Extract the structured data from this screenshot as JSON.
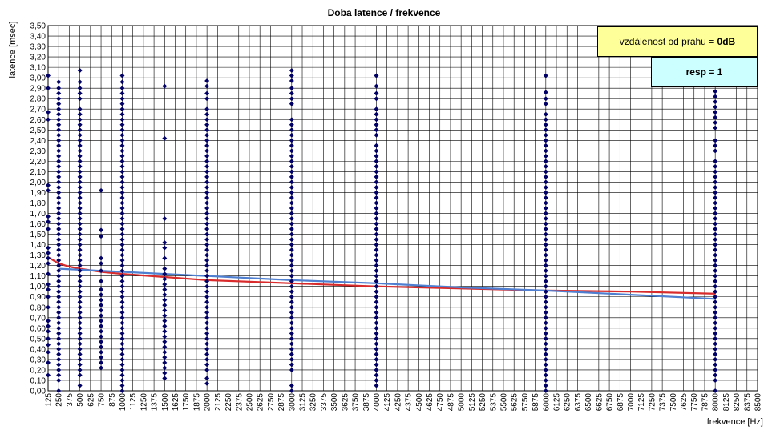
{
  "chart_data": {
    "type": "scatter",
    "title": "Doba latence / frekvence",
    "xlabel": "frekvence  [Hz]",
    "ylabel": "latence  [msec]",
    "xlim": [
      125,
      8500
    ],
    "ylim": [
      0,
      3.5
    ],
    "x_tick_step": 125,
    "y_tick_step": 0.1,
    "y_decimal_separator": ",",
    "grid": true,
    "marker_color": "#000066",
    "series": [
      {
        "type": "scatter",
        "points": [
          {
            "x": 125,
            "y": [
              0.15,
              0.27,
              0.37,
              0.44,
              0.5,
              0.57,
              0.62,
              0.67,
              0.8,
              0.9,
              0.97,
              1.02,
              1.12,
              1.22,
              1.27,
              1.32,
              1.37,
              1.55,
              1.62,
              1.67,
              1.92,
              1.97,
              2.6,
              2.67,
              2.9,
              3.02
            ]
          },
          {
            "x": 250,
            "y": [
              0.0,
              0.1,
              0.15,
              0.2,
              0.25,
              0.3,
              0.35,
              0.4,
              0.45,
              0.5,
              0.55,
              0.6,
              0.65,
              0.7,
              0.75,
              0.8,
              0.85,
              0.9,
              0.95,
              1.0,
              1.05,
              1.1,
              1.15,
              1.2,
              1.25,
              1.3,
              1.35,
              1.4,
              1.45,
              1.5,
              1.55,
              1.6,
              1.65,
              1.7,
              1.75,
              1.8,
              1.85,
              1.9,
              1.95,
              2.0,
              2.05,
              2.1,
              2.15,
              2.2,
              2.25,
              2.3,
              2.35,
              2.4,
              2.45,
              2.5,
              2.55,
              2.6,
              2.65,
              2.7,
              2.75,
              2.8,
              2.85,
              2.9,
              2.96
            ]
          },
          {
            "x": 500,
            "y": [
              0.05,
              0.15,
              0.2,
              0.25,
              0.3,
              0.35,
              0.4,
              0.45,
              0.5,
              0.55,
              0.6,
              0.65,
              0.7,
              0.75,
              0.8,
              0.85,
              0.9,
              0.95,
              1.0,
              1.05,
              1.1,
              1.15,
              1.2,
              1.25,
              1.3,
              1.35,
              1.4,
              1.45,
              1.5,
              1.55,
              1.6,
              1.65,
              1.7,
              1.75,
              1.8,
              1.85,
              1.9,
              1.95,
              2.0,
              2.05,
              2.1,
              2.15,
              2.2,
              2.25,
              2.3,
              2.35,
              2.4,
              2.45,
              2.5,
              2.55,
              2.6,
              2.65,
              2.7,
              2.8,
              2.85,
              2.9,
              2.96,
              3.07
            ]
          },
          {
            "x": 750,
            "y": [
              0.22,
              0.27,
              0.32,
              0.37,
              0.42,
              0.47,
              0.52,
              0.57,
              0.62,
              0.67,
              0.72,
              0.77,
              0.82,
              0.87,
              0.92,
              0.97,
              1.05,
              1.15,
              1.22,
              1.27,
              1.48,
              1.54,
              1.92
            ]
          },
          {
            "x": 1000,
            "y": [
              0.0,
              0.05,
              0.1,
              0.15,
              0.2,
              0.25,
              0.3,
              0.35,
              0.4,
              0.45,
              0.5,
              0.55,
              0.6,
              0.65,
              0.7,
              0.75,
              0.8,
              0.85,
              0.9,
              0.95,
              1.0,
              1.05,
              1.1,
              1.15,
              1.2,
              1.25,
              1.3,
              1.35,
              1.4,
              1.45,
              1.5,
              1.55,
              1.6,
              1.65,
              1.7,
              1.75,
              1.8,
              1.85,
              1.9,
              1.95,
              2.0,
              2.05,
              2.1,
              2.15,
              2.2,
              2.25,
              2.3,
              2.35,
              2.4,
              2.45,
              2.5,
              2.55,
              2.6,
              2.65,
              2.7,
              2.75,
              2.8,
              2.85,
              2.9,
              2.96,
              3.02
            ]
          },
          {
            "x": 1500,
            "y": [
              0.12,
              0.17,
              0.22,
              0.27,
              0.32,
              0.37,
              0.42,
              0.47,
              0.52,
              0.57,
              0.62,
              0.67,
              0.72,
              0.77,
              0.82,
              0.87,
              0.92,
              0.97,
              1.02,
              1.07,
              1.12,
              1.17,
              1.27,
              1.37,
              1.42,
              1.65,
              2.42,
              2.92
            ]
          },
          {
            "x": 2000,
            "y": [
              0.07,
              0.12,
              0.2,
              0.25,
              0.3,
              0.35,
              0.4,
              0.45,
              0.5,
              0.55,
              0.6,
              0.65,
              0.7,
              0.75,
              0.8,
              0.85,
              0.9,
              0.95,
              1.0,
              1.05,
              1.1,
              1.15,
              1.2,
              1.25,
              1.3,
              1.35,
              1.4,
              1.45,
              1.5,
              1.55,
              1.6,
              1.65,
              1.7,
              1.75,
              1.8,
              1.85,
              1.9,
              1.95,
              2.0,
              2.05,
              2.1,
              2.15,
              2.2,
              2.25,
              2.3,
              2.35,
              2.4,
              2.45,
              2.5,
              2.55,
              2.6,
              2.65,
              2.7,
              2.8,
              2.85,
              2.92,
              2.97
            ]
          },
          {
            "x": 3000,
            "y": [
              0.0,
              0.05,
              0.2,
              0.25,
              0.3,
              0.35,
              0.4,
              0.45,
              0.5,
              0.55,
              0.6,
              0.65,
              0.7,
              0.75,
              0.8,
              0.85,
              0.9,
              0.95,
              1.0,
              1.05,
              1.1,
              1.15,
              1.2,
              1.25,
              1.3,
              1.35,
              1.4,
              1.45,
              1.5,
              1.55,
              1.6,
              1.65,
              1.7,
              1.75,
              1.8,
              1.85,
              1.9,
              1.95,
              2.0,
              2.05,
              2.1,
              2.15,
              2.2,
              2.25,
              2.3,
              2.35,
              2.4,
              2.45,
              2.5,
              2.55,
              2.6,
              2.75,
              2.8,
              2.85,
              2.9,
              2.97,
              3.02,
              3.07
            ]
          },
          {
            "x": 4000,
            "y": [
              0.05,
              0.1,
              0.15,
              0.2,
              0.25,
              0.3,
              0.35,
              0.4,
              0.45,
              0.5,
              0.55,
              0.6,
              0.65,
              0.7,
              0.75,
              0.8,
              0.85,
              0.9,
              0.95,
              1.0,
              1.05,
              1.1,
              1.15,
              1.2,
              1.25,
              1.3,
              1.35,
              1.4,
              1.45,
              1.5,
              1.55,
              1.6,
              1.65,
              1.7,
              1.75,
              1.8,
              1.85,
              1.9,
              1.95,
              2.0,
              2.05,
              2.1,
              2.15,
              2.2,
              2.25,
              2.3,
              2.35,
              2.45,
              2.5,
              2.55,
              2.6,
              2.65,
              2.7,
              2.8,
              2.85,
              2.92,
              3.02
            ]
          },
          {
            "x": 6000,
            "y": [
              0.0,
              0.05,
              0.1,
              0.15,
              0.2,
              0.25,
              0.3,
              0.35,
              0.4,
              0.45,
              0.5,
              0.55,
              0.6,
              0.65,
              0.7,
              0.75,
              0.8,
              0.85,
              0.9,
              0.95,
              1.0,
              1.05,
              1.1,
              1.15,
              1.2,
              1.25,
              1.3,
              1.35,
              1.4,
              1.45,
              1.5,
              1.55,
              1.6,
              1.65,
              1.7,
              1.75,
              1.8,
              1.85,
              1.9,
              1.95,
              2.0,
              2.05,
              2.1,
              2.15,
              2.2,
              2.25,
              2.3,
              2.35,
              2.4,
              2.45,
              2.5,
              2.55,
              2.6,
              2.65,
              2.75,
              2.8,
              2.86,
              3.02
            ]
          },
          {
            "x": 8000,
            "y": [
              0.0,
              0.1,
              0.15,
              0.2,
              0.25,
              0.3,
              0.35,
              0.4,
              0.45,
              0.5,
              0.55,
              0.6,
              0.65,
              0.7,
              0.75,
              0.8,
              0.85,
              0.9,
              0.95,
              1.0,
              1.05,
              1.1,
              1.15,
              1.2,
              1.25,
              1.3,
              1.35,
              1.4,
              1.45,
              1.5,
              1.55,
              1.6,
              1.65,
              1.7,
              1.75,
              1.8,
              1.85,
              1.9,
              1.95,
              2.0,
              2.05,
              2.1,
              2.15,
              2.2,
              2.3,
              2.35,
              2.4,
              2.52,
              2.57,
              2.62,
              2.67,
              2.72,
              2.77,
              2.82,
              2.87
            ]
          }
        ]
      },
      {
        "type": "line",
        "color": "#d92b2b",
        "x": [
          125,
          250,
          375,
          500,
          750,
          1000,
          1500,
          2000,
          3000,
          4000,
          5000,
          6000,
          7000,
          8000
        ],
        "y": [
          1.28,
          1.22,
          1.19,
          1.17,
          1.14,
          1.12,
          1.09,
          1.06,
          1.03,
          1.0,
          0.98,
          0.96,
          0.95,
          0.93
        ]
      },
      {
        "type": "line",
        "color": "#4f7fd0",
        "x": [
          250,
          500,
          1000,
          1500,
          2000,
          3000,
          4000,
          5000,
          6000,
          7000,
          8000
        ],
        "y": [
          1.17,
          1.16,
          1.14,
          1.12,
          1.1,
          1.06,
          1.03,
          0.99,
          0.96,
          0.92,
          0.88
        ]
      }
    ]
  },
  "legend_boxes": {
    "threshold": {
      "label": "vzdálenost od prahu = ",
      "value": "0dB"
    },
    "resp": {
      "label": "resp = 1"
    }
  }
}
